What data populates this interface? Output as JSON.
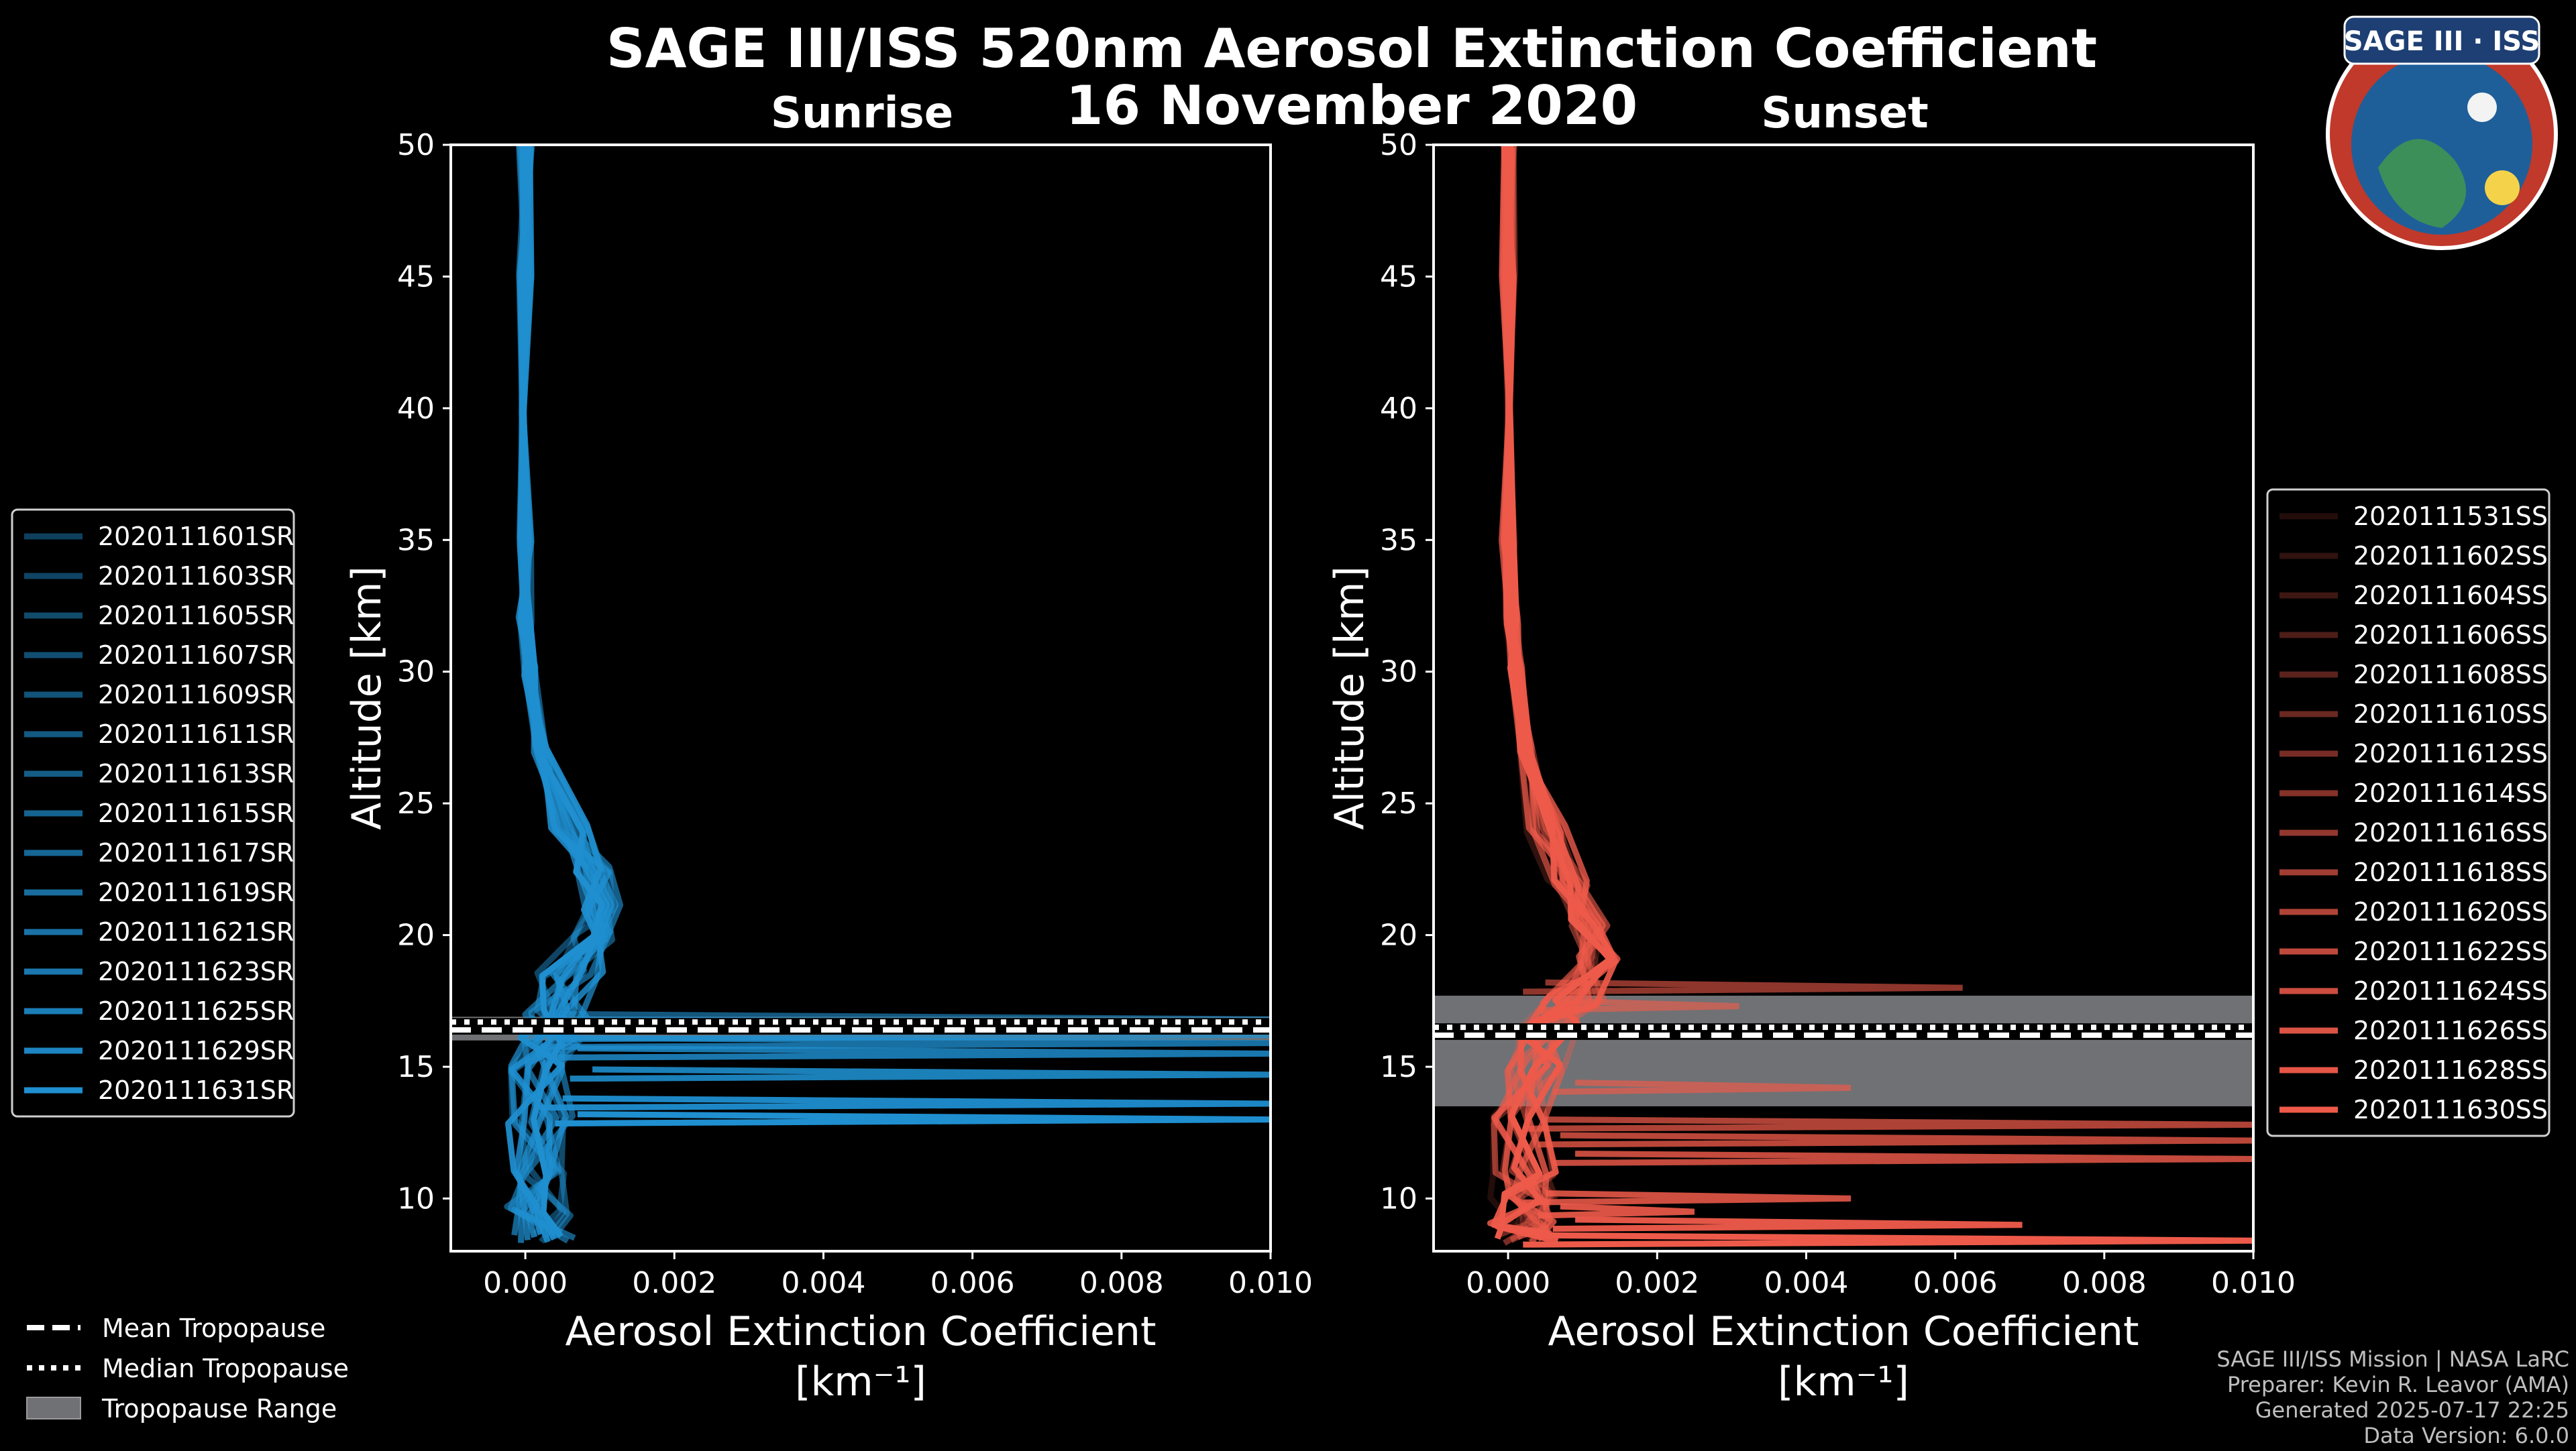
{
  "header": {
    "title": "SAGE III/ISS 520nm Aerosol Extinction Coefficient",
    "date": "16 November 2020"
  },
  "logo": {
    "text": "SAGE III · ISS"
  },
  "credits": [
    "SAGE III/ISS Mission | NASA LaRC",
    "Preparer: Kevin R. Leavor (AMA)",
    "Generated 2025-07-17 22:25",
    "Data Version: 6.0.0"
  ],
  "tropopause_legend": [
    {
      "label": "Mean Tropopause",
      "style": "dashed"
    },
    {
      "label": "Median Tropopause",
      "style": "dotted"
    },
    {
      "label": "Tropopause Range",
      "style": "patch"
    }
  ],
  "chart_data": [
    {
      "type": "line",
      "title": "Sunrise",
      "xlabel": "Aerosol Extinction Coefficient",
      "xunits": "[km⁻¹]",
      "ylabel": "Altitude [km]",
      "xlim": [
        -0.001,
        0.01
      ],
      "ylim": [
        8,
        50
      ],
      "xticks": [
        0.0,
        0.002,
        0.004,
        0.006,
        0.008,
        0.01
      ],
      "xtick_labels": [
        "0.000",
        "0.002",
        "0.004",
        "0.006",
        "0.008",
        "0.010"
      ],
      "yticks": [
        10,
        15,
        20,
        25,
        30,
        35,
        40,
        45,
        50
      ],
      "tropopause": {
        "mean": 16.4,
        "median": 16.7,
        "range": [
          16.0,
          16.9
        ]
      },
      "color": "#1f8fd0",
      "series": [
        {
          "name": "2020111601SR",
          "opacity": 0.45
        },
        {
          "name": "2020111603SR",
          "opacity": 0.48
        },
        {
          "name": "2020111605SR",
          "opacity": 0.52
        },
        {
          "name": "2020111607SR",
          "opacity": 0.55
        },
        {
          "name": "2020111609SR",
          "opacity": 0.58
        },
        {
          "name": "2020111611SR",
          "opacity": 0.62
        },
        {
          "name": "2020111613SR",
          "opacity": 0.65
        },
        {
          "name": "2020111615SR",
          "opacity": 0.69
        },
        {
          "name": "2020111617SR",
          "opacity": 0.72
        },
        {
          "name": "2020111619SR",
          "opacity": 0.76
        },
        {
          "name": "2020111621SR",
          "opacity": 0.8
        },
        {
          "name": "2020111623SR",
          "opacity": 0.84
        },
        {
          "name": "2020111625SR",
          "opacity": 0.88
        },
        {
          "name": "2020111629SR",
          "opacity": 0.93
        },
        {
          "name": "2020111631SR",
          "opacity": 1.0
        }
      ],
      "profile_shape": {
        "x": [
          0.0,
          0.0,
          0.0,
          0.0,
          0.0,
          5e-05,
          0.0002,
          0.0006,
          0.00095,
          0.00105,
          0.0009,
          0.0006,
          0.0004,
          0.0003,
          0.0002,
          0.0002,
          0.0002,
          0.0002,
          0.0003
        ],
        "y": [
          50,
          45,
          40,
          35,
          32,
          30,
          27,
          24,
          22.5,
          21,
          20,
          18.5,
          17,
          16,
          15,
          13,
          11,
          9.5,
          8.5
        ]
      },
      "spikes": [
        {
          "y": 16.8,
          "x": 0.01
        },
        {
          "y": 16.6,
          "x": 0.01
        },
        {
          "y": 16.2,
          "x": 0.01
        },
        {
          "y": 15.9,
          "x": 0.01
        },
        {
          "y": 15.5,
          "x": 0.01
        },
        {
          "y": 14.7,
          "x": 0.01
        },
        {
          "y": 13.6,
          "x": 0.01
        },
        {
          "y": 13.0,
          "x": 0.01
        }
      ]
    },
    {
      "type": "line",
      "title": "Sunset",
      "xlabel": "Aerosol Extinction Coefficient",
      "xunits": "[km⁻¹]",
      "ylabel": "Altitude [km]",
      "xlim": [
        -0.001,
        0.01
      ],
      "ylim": [
        8,
        50
      ],
      "xticks": [
        0.0,
        0.002,
        0.004,
        0.006,
        0.008,
        0.01
      ],
      "xtick_labels": [
        "0.000",
        "0.002",
        "0.004",
        "0.006",
        "0.008",
        "0.010"
      ],
      "yticks": [
        10,
        15,
        20,
        25,
        30,
        35,
        40,
        45,
        50
      ],
      "tropopause": {
        "mean": 16.2,
        "median": 16.5,
        "range": [
          13.5,
          17.7
        ]
      },
      "color": "#ee5a4a",
      "series": [
        {
          "name": "2020111531SS",
          "opacity": 0.15
        },
        {
          "name": "2020111602SS",
          "opacity": 0.2
        },
        {
          "name": "2020111604SS",
          "opacity": 0.26
        },
        {
          "name": "2020111606SS",
          "opacity": 0.32
        },
        {
          "name": "2020111608SS",
          "opacity": 0.38
        },
        {
          "name": "2020111610SS",
          "opacity": 0.44
        },
        {
          "name": "2020111612SS",
          "opacity": 0.5
        },
        {
          "name": "2020111614SS",
          "opacity": 0.56
        },
        {
          "name": "2020111616SS",
          "opacity": 0.62
        },
        {
          "name": "2020111618SS",
          "opacity": 0.68
        },
        {
          "name": "2020111620SS",
          "opacity": 0.74
        },
        {
          "name": "2020111622SS",
          "opacity": 0.8
        },
        {
          "name": "2020111624SS",
          "opacity": 0.86
        },
        {
          "name": "2020111626SS",
          "opacity": 0.92
        },
        {
          "name": "2020111628SS",
          "opacity": 0.96
        },
        {
          "name": "2020111630SS",
          "opacity": 1.0
        }
      ],
      "profile_shape": {
        "x": [
          0.0,
          0.0,
          0.0,
          0.0,
          5e-05,
          0.0001,
          0.00025,
          0.0005,
          0.0008,
          0.0011,
          0.0012,
          0.0009,
          0.0005,
          0.0003,
          0.0002,
          0.0002,
          0.0002,
          0.0002,
          0.0003
        ],
        "y": [
          50,
          45,
          40,
          35,
          32,
          30,
          27,
          24,
          22,
          20.5,
          19,
          17.5,
          16.5,
          15,
          13,
          11,
          10,
          9,
          8.5
        ]
      },
      "spikes": [
        {
          "y": 18.0,
          "x": 0.0061
        },
        {
          "y": 17.3,
          "x": 0.0031
        },
        {
          "y": 14.2,
          "x": 0.0046
        },
        {
          "y": 12.8,
          "x": 0.01
        },
        {
          "y": 12.2,
          "x": 0.01
        },
        {
          "y": 11.5,
          "x": 0.01
        },
        {
          "y": 10.0,
          "x": 0.0046
        },
        {
          "y": 9.5,
          "x": 0.0025
        },
        {
          "y": 9.0,
          "x": 0.0069
        },
        {
          "y": 8.4,
          "x": 0.01
        }
      ]
    }
  ]
}
